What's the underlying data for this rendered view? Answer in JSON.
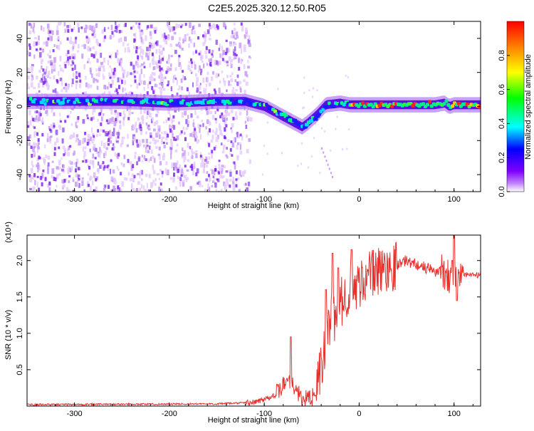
{
  "title": "C2E5.2025.320.12.50.R05",
  "chart_data": [
    {
      "type": "heatmap",
      "name": "spectrogram",
      "xlabel": "Height of straight line (km)",
      "ylabel": "Frequency (Hz)",
      "xlim": [
        -350,
        128
      ],
      "ylim": [
        -50,
        50
      ],
      "x_ticks": [
        -300,
        -200,
        -100,
        0,
        100
      ],
      "x_tick_labels": [
        "-300",
        "-200",
        "-100",
        "0",
        "100"
      ],
      "y_ticks": [
        -40,
        -20,
        0,
        20,
        40
      ],
      "y_tick_labels": [
        "-40",
        "-20",
        "0",
        "20",
        "40"
      ],
      "ridge": {
        "x": [
          -350,
          -300,
          -250,
          -200,
          -150,
          -120,
          -100,
          -80,
          -60,
          -55,
          -45,
          -35,
          -20,
          -10,
          0,
          20,
          50,
          80,
          90,
          95,
          100,
          128
        ],
        "y": [
          3,
          3,
          3,
          2,
          3,
          3,
          0,
          -6,
          -12,
          -10,
          -5,
          1,
          2,
          1,
          1,
          1,
          1,
          1,
          2,
          0,
          1,
          1
        ]
      }
    },
    {
      "type": "colorbar",
      "name": "amplitude-colorbar",
      "label": "Normalized spectral amplitude",
      "range": [
        0,
        1
      ],
      "ticks": [
        0.0,
        0.2,
        0.4,
        0.6,
        0.8
      ],
      "tick_labels": [
        "0.0",
        "0.2",
        "0.4",
        "0.6",
        "0.8"
      ],
      "colors": [
        "#ffffff",
        "#8000ff",
        "#0000ff",
        "#00ffff",
        "#00ff00",
        "#ffff00",
        "#ff8000",
        "#ff0000"
      ]
    },
    {
      "type": "line",
      "name": "snr-plot",
      "xlabel": "Height of straight line (km)",
      "ylabel": "SNR (10 * v/v)",
      "y_scale_note": "(x10⁴)",
      "xlim": [
        -350,
        128
      ],
      "ylim": [
        0,
        2.35
      ],
      "x_ticks": [
        -300,
        -200,
        -100,
        0,
        100
      ],
      "x_tick_labels": [
        "-300",
        "-200",
        "-100",
        "0",
        "100"
      ],
      "y_ticks": [
        0.5,
        1.0,
        1.5,
        2.0
      ],
      "y_tick_labels": [
        "0.5",
        "1.0",
        "1.5",
        "2.0"
      ],
      "color": "#e8302c",
      "envelope": {
        "x": [
          -350,
          -150,
          -110,
          -95,
          -85,
          -78,
          -74,
          -70,
          -65,
          -58,
          -50,
          -45,
          -40,
          -35,
          -30,
          -25,
          -20,
          -15,
          -10,
          -5,
          0,
          10,
          20,
          30,
          40,
          50,
          60,
          70,
          80,
          90,
          95,
          100,
          105,
          110,
          115,
          128
        ],
        "y": [
          0.02,
          0.03,
          0.05,
          0.12,
          0.2,
          0.32,
          0.38,
          0.3,
          0.18,
          0.1,
          0.1,
          0.25,
          0.5,
          0.85,
          1.2,
          1.25,
          1.4,
          1.5,
          1.65,
          1.55,
          1.7,
          1.8,
          1.85,
          1.9,
          1.95,
          2.0,
          1.95,
          1.9,
          1.85,
          1.85,
          1.8,
          1.75,
          1.8,
          1.8,
          1.8,
          1.8
        ]
      },
      "peaks": [
        {
          "x": -72,
          "y": 0.95
        },
        {
          "x": -35,
          "y": 1.6
        },
        {
          "x": -28,
          "y": 2.1
        },
        {
          "x": -22,
          "y": 1.9
        },
        {
          "x": -8,
          "y": 2.15
        },
        {
          "x": 98,
          "y": 2.0
        },
        {
          "x": 100,
          "y": 2.35
        },
        {
          "x": 103,
          "y": 1.45
        }
      ]
    }
  ]
}
